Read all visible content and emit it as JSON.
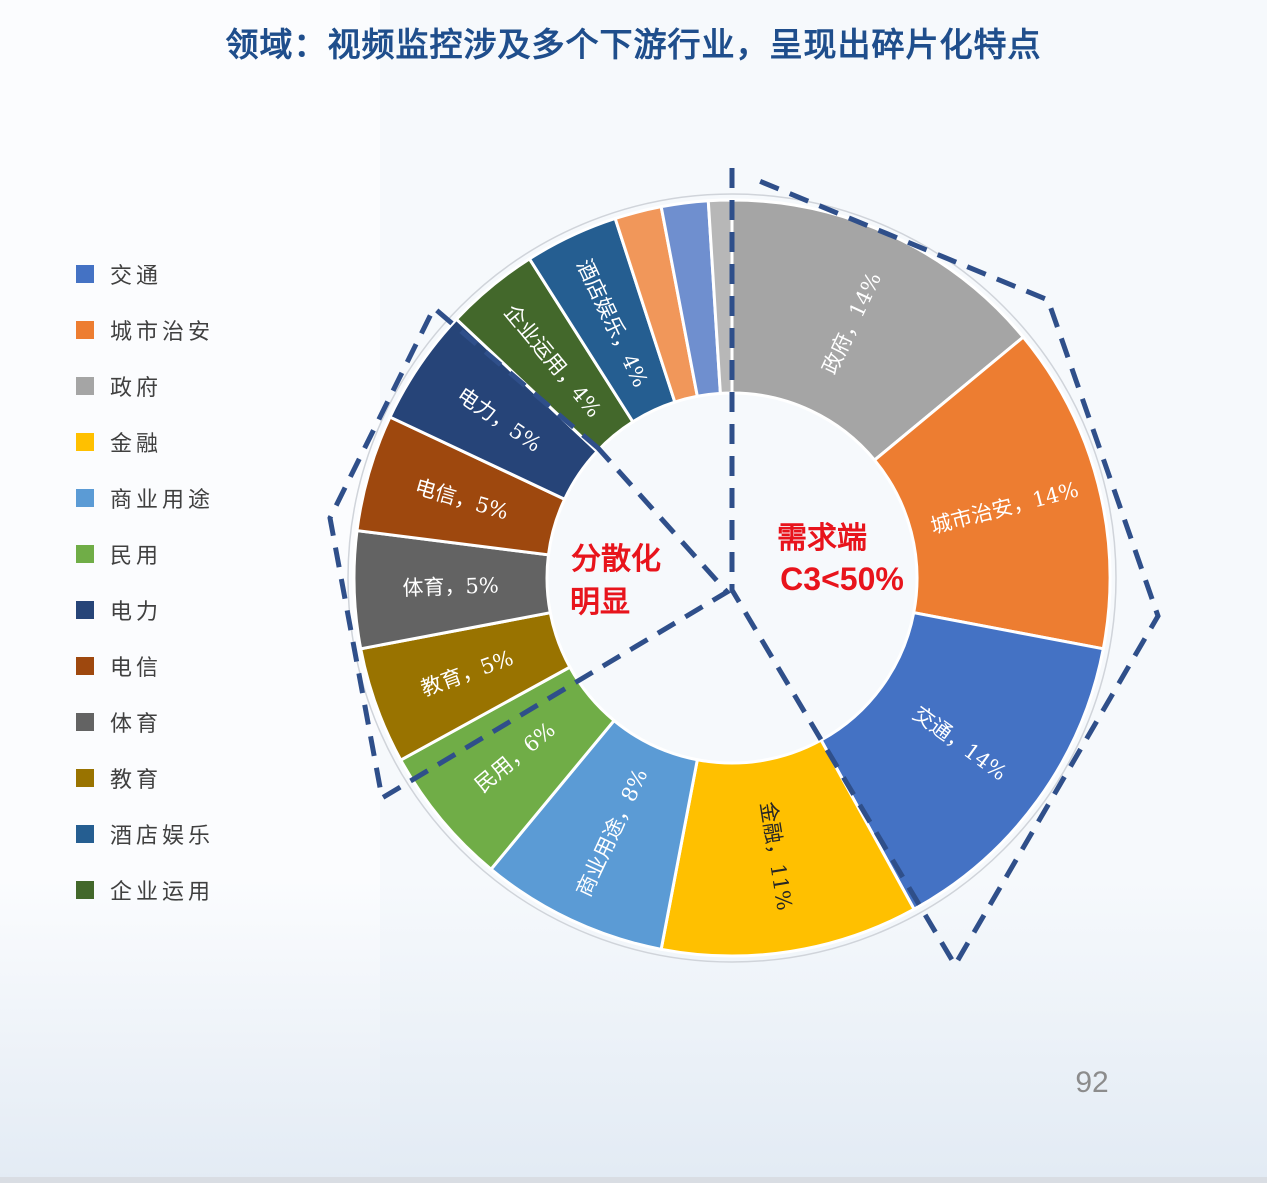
{
  "page": {
    "title": "领域：视频监控涉及多个下游行业，呈现出碎片化特点",
    "page_number": "92"
  },
  "annotations": {
    "left_line1": "分散化",
    "left_line2": "明显",
    "right_line1": "需求端",
    "right_line2": "C3<50%",
    "color": "#e8141c",
    "dash_color": "#2f4f8a"
  },
  "chart_data": {
    "type": "pie",
    "donut": true,
    "start": "top",
    "direction": "clockwise",
    "legend_placement": "left",
    "slices": [
      {
        "name": "政府",
        "value": 14,
        "color": "#a5a5a5",
        "label": "政府，14%"
      },
      {
        "name": "城市治安",
        "value": 14,
        "color": "#ed7d31",
        "label": "城市治安，14%"
      },
      {
        "name": "交通",
        "value": 14,
        "color": "#4472c4",
        "label": "交通，14%"
      },
      {
        "name": "金融",
        "value": 11,
        "color": "#ffc000",
        "label": "金融，11%"
      },
      {
        "name": "商业用途",
        "value": 8,
        "color": "#5b9bd5",
        "label": "商业用途，8%"
      },
      {
        "name": "民用",
        "value": 6,
        "color": "#70ad47",
        "label": "民用，6%"
      },
      {
        "name": "教育",
        "value": 5,
        "color": "#997300",
        "label": "教育，5%"
      },
      {
        "name": "体育",
        "value": 5,
        "color": "#636363",
        "label": "体育，5%"
      },
      {
        "name": "电信",
        "value": 5,
        "color": "#9e480e",
        "label": "电信，5%"
      },
      {
        "name": "电力",
        "value": 5,
        "color": "#264478",
        "label": "电力，5%"
      },
      {
        "name": "企业运用",
        "value": 4,
        "color": "#43682b",
        "label": "企业运用，4%"
      },
      {
        "name": "酒店娱乐",
        "value": 4,
        "color": "#255e91",
        "label": "酒店娱乐，4%"
      },
      {
        "name": "",
        "value": 2,
        "color": "#f1975a",
        "label": ""
      },
      {
        "name": "",
        "value": 2,
        "color": "#6f8fcf",
        "label": ""
      },
      {
        "name": "",
        "value": 1,
        "color": "#b7b7b7",
        "label": ""
      }
    ],
    "legend": [
      {
        "name": "交通",
        "color": "#4472c4"
      },
      {
        "name": "城市治安",
        "color": "#ed7d31"
      },
      {
        "name": "政府",
        "color": "#a5a5a5"
      },
      {
        "name": "金融",
        "color": "#ffc000"
      },
      {
        "name": "商业用途",
        "color": "#5b9bd5"
      },
      {
        "name": "民用",
        "color": "#70ad47"
      },
      {
        "name": "电力",
        "color": "#264478"
      },
      {
        "name": "电信",
        "color": "#9e480e"
      },
      {
        "name": "体育",
        "color": "#636363"
      },
      {
        "name": "教育",
        "color": "#997300"
      },
      {
        "name": "酒店娱乐",
        "color": "#255e91"
      },
      {
        "name": "企业运用",
        "color": "#43682b"
      }
    ]
  }
}
